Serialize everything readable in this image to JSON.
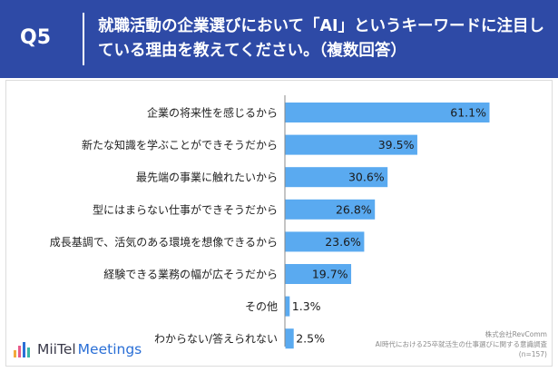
{
  "header": {
    "question_label": "Q5",
    "title": "就職活動の企業選びにおいて「AI」というキーワードに注目している理由を教えてください。（複数回答）"
  },
  "colors": {
    "header_bg": "#2e4aa6",
    "bar": "#5aaaf0",
    "axis": "#888888"
  },
  "chart_data": {
    "type": "bar",
    "orientation": "horizontal",
    "categories": [
      "企業の将来性を感じるから",
      "新たな知識を学ぶことができそうだから",
      "最先端の事業に触れたいから",
      "型にはまらない仕事ができそうだから",
      "成長基調で、活気のある環境を想像できるから",
      "経験できる業務の幅が広そうだから",
      "その他",
      "わからない/答えられない"
    ],
    "values": [
      61.1,
      39.5,
      30.6,
      26.8,
      23.6,
      19.7,
      1.3,
      2.5
    ],
    "value_labels": [
      "61.1%",
      "39.5%",
      "30.6%",
      "26.8%",
      "23.6%",
      "19.7%",
      "1.3%",
      "2.5%"
    ],
    "xlim": [
      0,
      70
    ],
    "grid": false,
    "legend": "none"
  },
  "footer": {
    "logo_part1": "MiiTel",
    "logo_part2": "Meetings",
    "source_line1": "株式会社RevComm",
    "source_line2": "AI時代における25卒就活生の仕事選びに関する意識調査",
    "source_line3": "(n=157)"
  }
}
